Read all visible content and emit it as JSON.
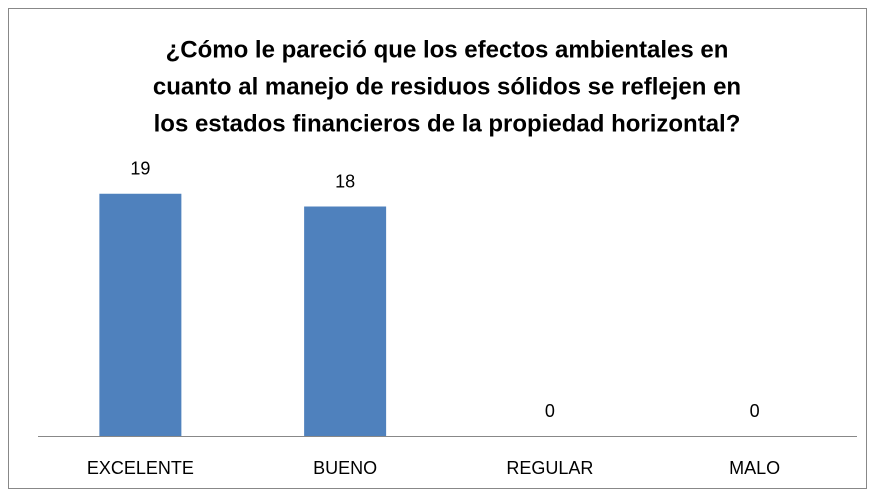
{
  "chart_data": {
    "type": "bar",
    "title": [
      "¿Cómo le pareció que los efectos ambientales en",
      "cuanto al manejo de residuos sólidos se reflejen en",
      "los estados financieros de la propiedad horizontal?"
    ],
    "categories": [
      "EXCELENTE",
      "BUENO",
      "REGULAR",
      "MALO"
    ],
    "values": [
      19,
      18,
      0,
      0
    ],
    "color": "#4f81bd",
    "ylim": [
      0,
      20
    ]
  }
}
